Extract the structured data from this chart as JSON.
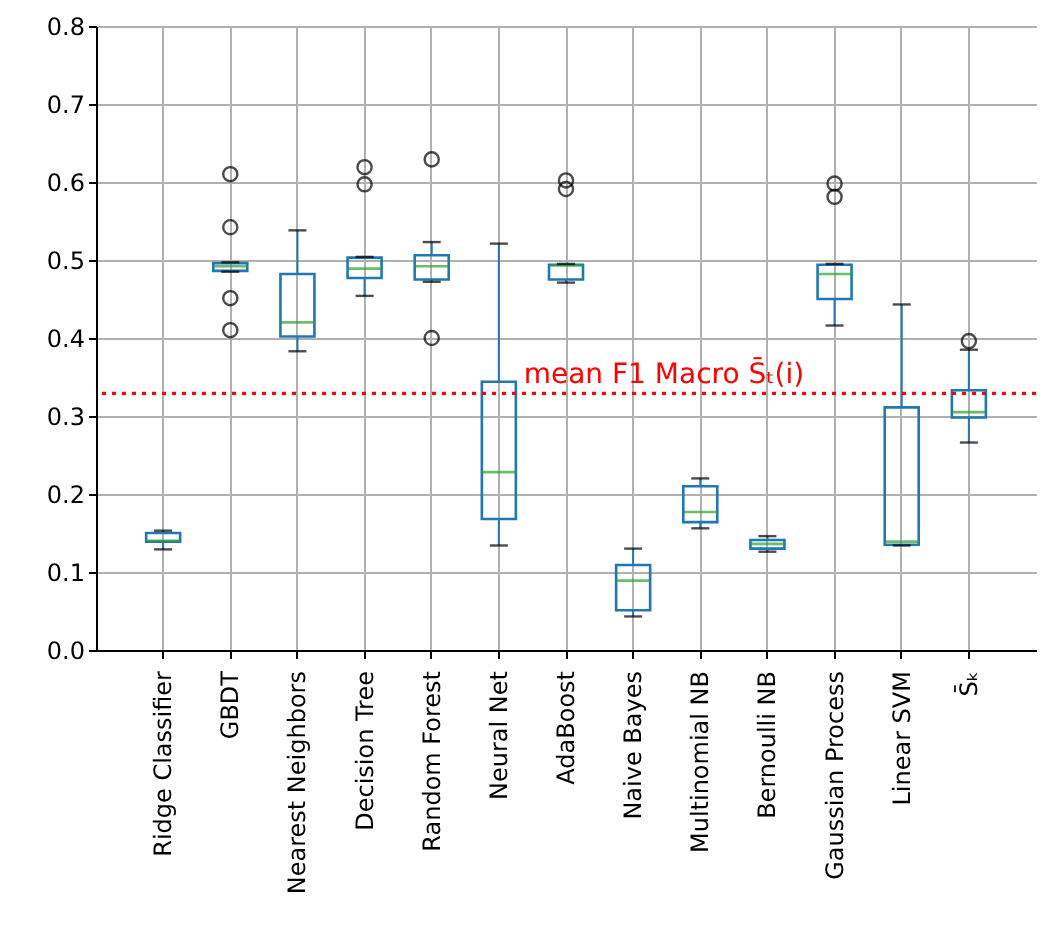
{
  "chart_data": {
    "type": "box",
    "categories": [
      "Ridge Classifier",
      "GBDT",
      "Nearest Neighbors",
      "Decision Tree",
      "Random Forest",
      "Neural Net",
      "AdaBoost",
      "Naive Bayes",
      "Multinomial NB",
      "Bernoulli NB",
      "Gaussian Process",
      "Linear SVM",
      "S̄ₖ"
    ],
    "boxes": [
      {
        "low": 0.129,
        "q1": 0.139,
        "median": 0.14,
        "q3": 0.15,
        "high": 0.153
      },
      {
        "low": 0.485,
        "q1": 0.486,
        "median": 0.492,
        "q3": 0.496,
        "high": 0.497,
        "outliers": [
          0.61,
          0.542,
          0.451,
          0.41
        ]
      },
      {
        "low": 0.383,
        "q1": 0.402,
        "median": 0.42,
        "q3": 0.482,
        "high": 0.538
      },
      {
        "low": 0.454,
        "q1": 0.477,
        "median": 0.489,
        "q3": 0.503,
        "high": 0.504,
        "outliers": [
          0.619,
          0.597
        ]
      },
      {
        "low": 0.472,
        "q1": 0.475,
        "median": 0.492,
        "q3": 0.506,
        "high": 0.523,
        "outliers": [
          0.629,
          0.4
        ]
      },
      {
        "low": 0.134,
        "q1": 0.168,
        "median": 0.228,
        "q3": 0.344,
        "high": 0.521
      },
      {
        "low": 0.471,
        "q1": 0.475,
        "median": 0.493,
        "q3": 0.494,
        "high": 0.495,
        "outliers": [
          0.602,
          0.591
        ]
      },
      {
        "low": 0.043,
        "q1": 0.051,
        "median": 0.089,
        "q3": 0.109,
        "high": 0.13
      },
      {
        "low": 0.156,
        "q1": 0.164,
        "median": 0.177,
        "q3": 0.21,
        "high": 0.22
      },
      {
        "low": 0.126,
        "q1": 0.13,
        "median": 0.136,
        "q3": 0.141,
        "high": 0.146
      },
      {
        "low": 0.416,
        "q1": 0.45,
        "median": 0.482,
        "q3": 0.494,
        "high": 0.495,
        "outliers": [
          0.598,
          0.581
        ]
      },
      {
        "low": 0.134,
        "q1": 0.135,
        "median": 0.139,
        "q3": 0.311,
        "high": 0.443
      },
      {
        "low": 0.266,
        "q1": 0.298,
        "median": 0.305,
        "q3": 0.333,
        "high": 0.385,
        "outliers": [
          0.396
        ]
      }
    ],
    "ylim": [
      0,
      0.8
    ],
    "yticks": [
      {
        "value": 0,
        "label": "0.0"
      },
      0.1,
      0.2,
      0.3,
      0.4,
      0.5,
      0.6,
      0.7,
      0.8
    ],
    "grid": true,
    "ref_lines": [
      {
        "axis": "y",
        "value": 0.329,
        "label": "mean F1 Macro S̄ₜ(i)",
        "color": "#ff0000",
        "line_style": "dotted"
      }
    ]
  }
}
